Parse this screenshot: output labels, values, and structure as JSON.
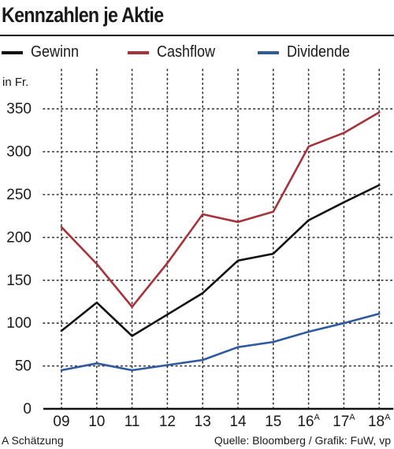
{
  "title": "Kennzahlen je Aktie",
  "unit_label": "in Fr.",
  "colors": {
    "gewinn": "#111111",
    "cashflow": "#a8323a",
    "dividende": "#2e5aa0",
    "grid": "#333333"
  },
  "legend": [
    {
      "label": "Gewinn",
      "color": "#111111"
    },
    {
      "label": "Cashflow",
      "color": "#a8323a"
    },
    {
      "label": "Dividende",
      "color": "#2e5aa0"
    }
  ],
  "footer": {
    "note": "A Schätzung",
    "source": "Quelle: Bloomberg / Grafik: FuW, vp"
  },
  "chart_data": {
    "type": "line",
    "categories": [
      "09",
      "10",
      "11",
      "12",
      "13",
      "14",
      "15",
      "16",
      "17",
      "18"
    ],
    "category_superscripts": [
      "",
      "",
      "",
      "",
      "",
      "",
      "",
      "A",
      "A",
      "A"
    ],
    "series": [
      {
        "name": "Gewinn",
        "values": [
          91,
          124,
          85,
          110,
          135,
          173,
          181,
          220,
          241,
          261
        ]
      },
      {
        "name": "Cashflow",
        "values": [
          212,
          169,
          119,
          170,
          227,
          218,
          230,
          306,
          322,
          346
        ]
      },
      {
        "name": "Dividende",
        "values": [
          45,
          53,
          45,
          51,
          57,
          72,
          78,
          90,
          100,
          111
        ]
      }
    ],
    "yticks": [
      0,
      50,
      100,
      150,
      200,
      250,
      300,
      350
    ],
    "ylim": [
      0,
      370
    ],
    "ylabel": "in Fr.",
    "xlabel": "",
    "grid": "dotted"
  }
}
